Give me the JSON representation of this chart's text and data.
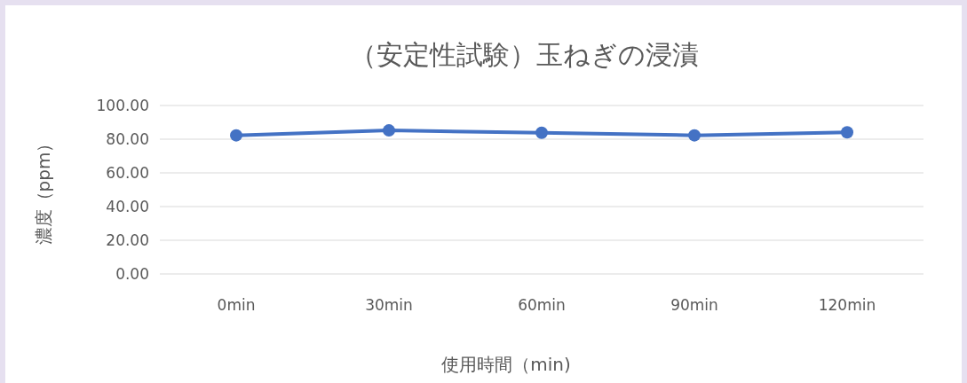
{
  "chart_data": {
    "type": "line",
    "title": "（安定性試験）玉ねぎの浸漬",
    "xlabel": "使用時間（min)",
    "ylabel": "濃度（ppm）",
    "categories": [
      "0min",
      "30min",
      "60min",
      "90min",
      "120min"
    ],
    "series": [
      {
        "color": "#4472c4",
        "values": [
          82.3,
          85.2,
          83.8,
          82.3,
          84.1
        ]
      }
    ],
    "ylim": [
      0,
      100
    ],
    "yticks": [
      {
        "value": 0,
        "label": "0.00"
      },
      {
        "value": 20,
        "label": "20.00"
      },
      {
        "value": 40,
        "label": "40.00"
      },
      {
        "value": 60,
        "label": "60.00"
      },
      {
        "value": 80,
        "label": "80.00"
      },
      {
        "value": 100,
        "label": "100.00"
      }
    ],
    "grid": "y",
    "marker": "circle"
  }
}
